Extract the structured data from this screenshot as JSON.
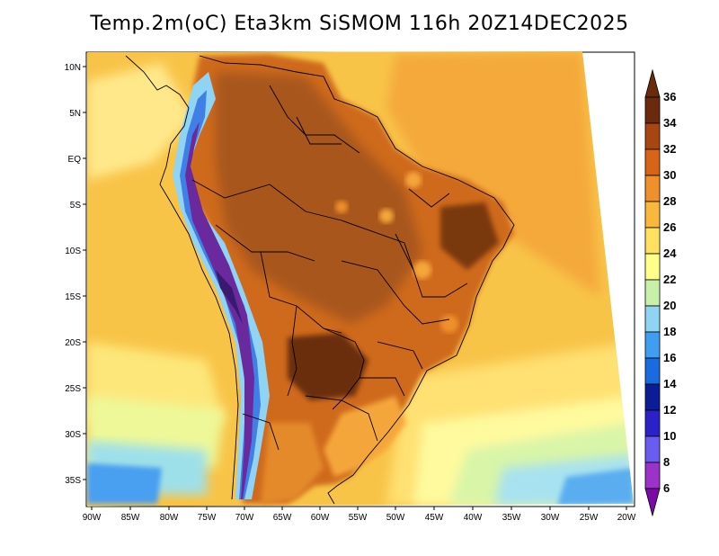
{
  "title": "Temp.2m(oC) Eta3km SiSMOM 116h 20Z14DEC2025",
  "y_axis_labels": [
    "10N",
    "5N",
    "EQ",
    "5S",
    "10S",
    "15S",
    "20S",
    "25S",
    "30S",
    "35S"
  ],
  "x_axis_labels": [
    "90W",
    "85W",
    "80W",
    "75W",
    "70W",
    "65W",
    "60W",
    "55W",
    "50W",
    "45W",
    "40W",
    "35W",
    "30W",
    "25W",
    "20W"
  ],
  "colorbar": {
    "unit": "°C",
    "labels": [
      "6",
      "8",
      "10",
      "12",
      "14",
      "16",
      "18",
      "20",
      "22",
      "24",
      "26",
      "28",
      "30",
      "32",
      "34",
      "36"
    ],
    "colors": [
      "#7b0aa6",
      "#9b33c9",
      "#6a5cf0",
      "#2a22c8",
      "#0a1d96",
      "#1a6ae0",
      "#3f9ef2",
      "#8fd3f5",
      "#c8f0a8",
      "#ffff8a",
      "#ffe060",
      "#f8b83c",
      "#f0902a",
      "#d86418",
      "#a84510",
      "#6b2a0b"
    ]
  }
}
